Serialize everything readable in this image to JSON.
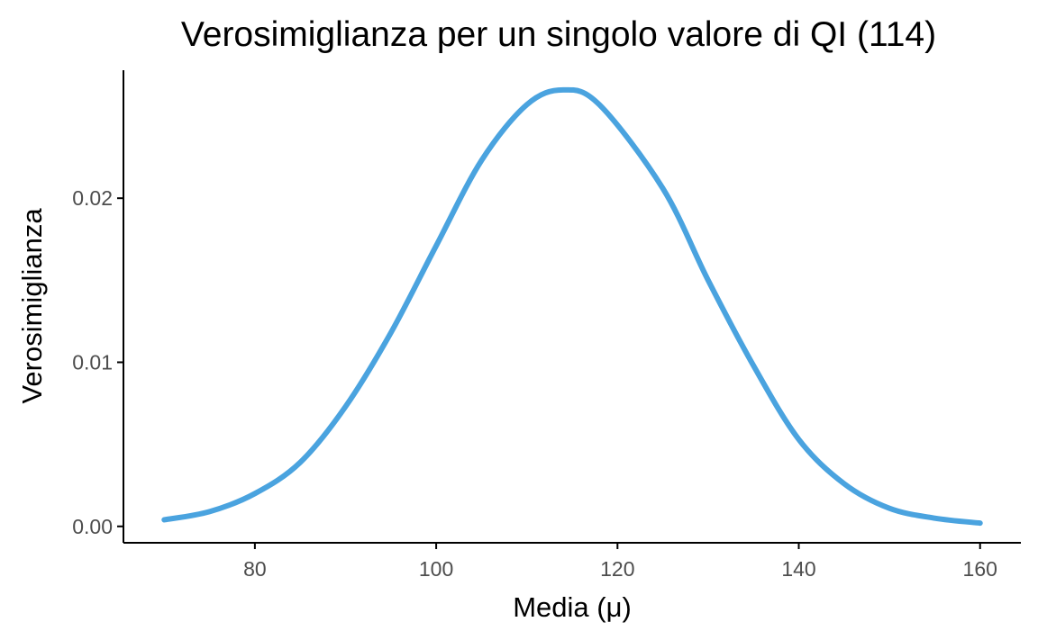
{
  "chart_data": {
    "type": "line",
    "title": "Verosimiglianza per un singolo valore di QI (114)",
    "xlabel": "Media (μ)",
    "ylabel": "Verosimiglianza",
    "xlim": [
      65.5,
      164.5
    ],
    "ylim": [
      -0.001,
      0.0278
    ],
    "x_ticks": [
      80,
      100,
      120,
      140,
      160
    ],
    "x_tick_labels": [
      "80",
      "100",
      "120",
      "140",
      "160"
    ],
    "y_ticks": [
      0.0,
      0.01,
      0.02
    ],
    "y_tick_labels": [
      "0.00",
      "0.01",
      "0.02"
    ],
    "grid": false,
    "legend": "none",
    "line_color": "#4aa3df",
    "series": [
      {
        "x": [
          70,
          75,
          80,
          85,
          90,
          95,
          100,
          105,
          110,
          114,
          118,
          125,
          130,
          135,
          140,
          145,
          150,
          155,
          160
        ],
        "y": [
          0.0004,
          0.0009,
          0.002,
          0.0039,
          0.0073,
          0.0118,
          0.0171,
          0.0223,
          0.0257,
          0.0266,
          0.0257,
          0.0206,
          0.015,
          0.0098,
          0.0053,
          0.0026,
          0.0011,
          0.0005,
          0.0002
        ]
      }
    ]
  }
}
